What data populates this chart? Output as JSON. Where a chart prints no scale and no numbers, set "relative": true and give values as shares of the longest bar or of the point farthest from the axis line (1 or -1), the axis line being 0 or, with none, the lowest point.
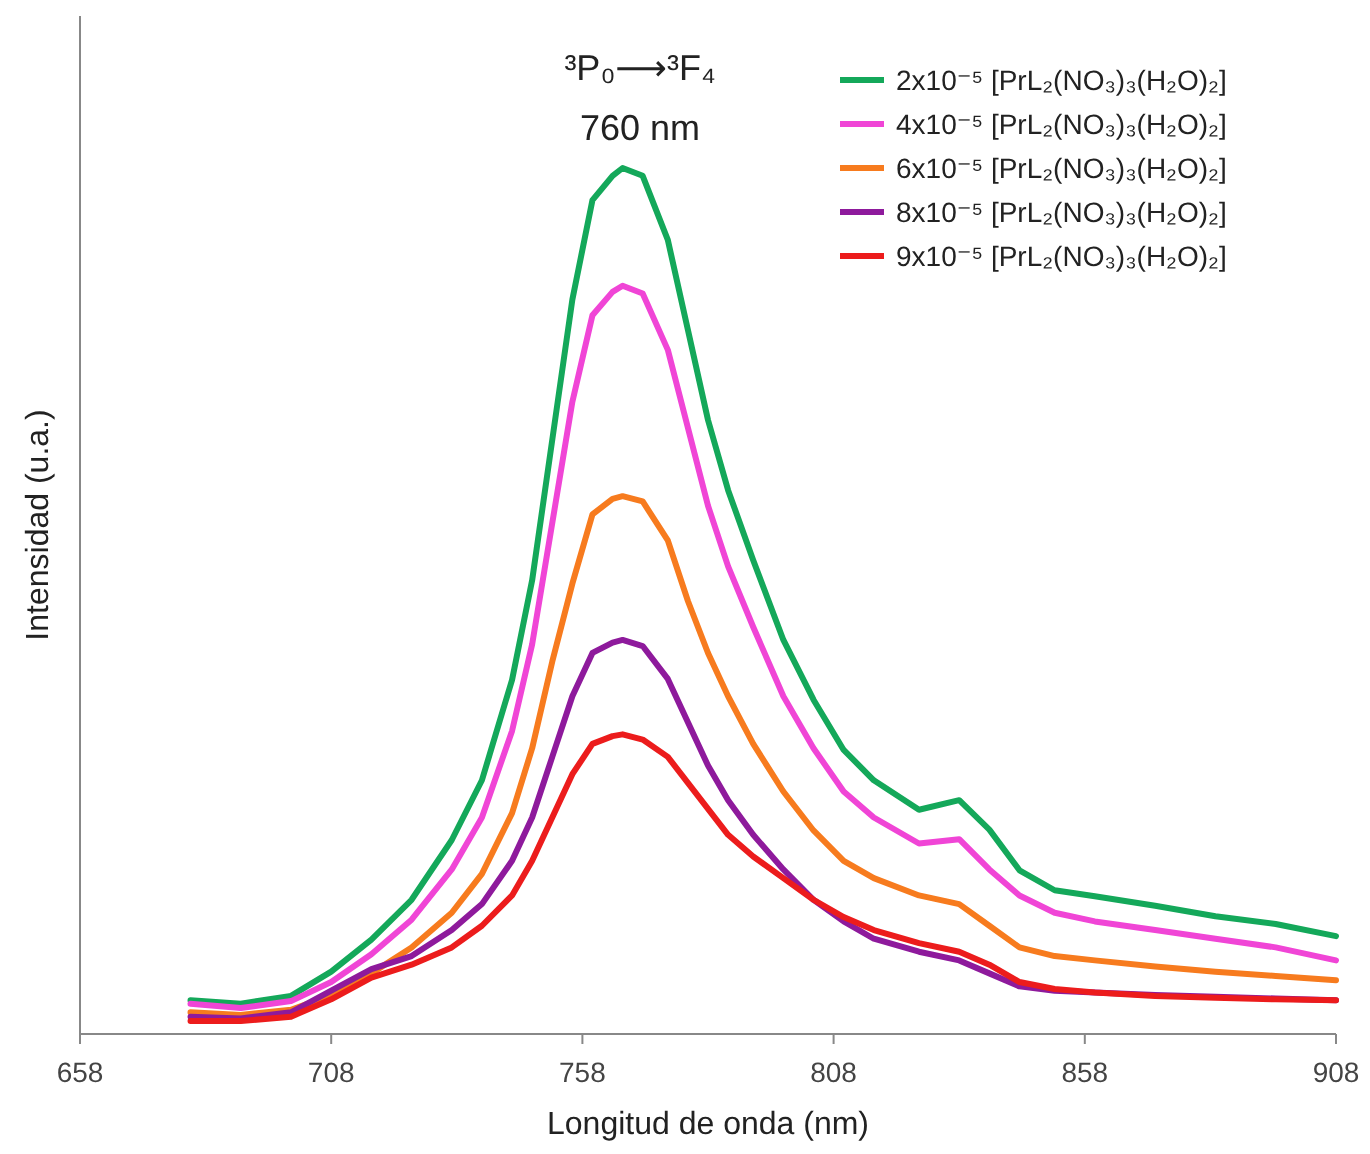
{
  "chart_data": {
    "type": "line",
    "relative": true,
    "xlabel": "Longitud de onda (nm)",
    "ylabel": "Intensidad  (u.a.)",
    "xlim": [
      658,
      908
    ],
    "xticks": [
      658,
      708,
      758,
      808,
      858,
      908
    ],
    "legend": "top right",
    "annotations": [
      "³P₀⟶³F₄",
      "760 nm"
    ],
    "x": [
      680,
      690,
      700,
      708,
      716,
      724,
      732,
      738,
      744,
      748,
      752,
      756,
      760,
      764,
      766,
      770,
      775,
      779,
      783,
      787,
      792,
      798,
      804,
      810,
      816,
      825,
      833,
      839,
      845,
      852,
      860,
      872,
      884,
      896,
      908
    ],
    "series": [
      {
        "name": "2x10⁻⁵ [PrL₂(NO₃)₃(H₂O)₂]",
        "color": "#14a85a",
        "values": [
          0.039,
          0.035,
          0.044,
          0.072,
          0.109,
          0.155,
          0.224,
          0.293,
          0.409,
          0.524,
          0.686,
          0.848,
          0.963,
          0.991,
          1.0,
          0.991,
          0.917,
          0.813,
          0.709,
          0.628,
          0.547,
          0.455,
          0.386,
          0.328,
          0.293,
          0.259,
          0.27,
          0.236,
          0.189,
          0.166,
          0.159,
          0.148,
          0.136,
          0.127,
          0.113
        ]
      },
      {
        "name": "4x10⁻⁵ [PrL₂(NO₃)₃(H₂O)₂]",
        "color": "#f045d6",
        "values": [
          0.035,
          0.03,
          0.038,
          0.06,
          0.092,
          0.132,
          0.19,
          0.25,
          0.35,
          0.45,
          0.59,
          0.73,
          0.83,
          0.857,
          0.864,
          0.855,
          0.79,
          0.7,
          0.61,
          0.54,
          0.47,
          0.39,
          0.33,
          0.28,
          0.25,
          0.22,
          0.225,
          0.19,
          0.16,
          0.14,
          0.13,
          0.12,
          0.11,
          0.1,
          0.085
        ]
      },
      {
        "name": "6x10⁻⁵ [PrL₂(NO₃)₃(H₂O)₂]",
        "color": "#f77b1e",
        "values": [
          0.025,
          0.022,
          0.028,
          0.045,
          0.07,
          0.1,
          0.14,
          0.185,
          0.255,
          0.33,
          0.43,
          0.52,
          0.6,
          0.618,
          0.621,
          0.615,
          0.57,
          0.5,
          0.44,
          0.39,
          0.335,
          0.28,
          0.235,
          0.2,
          0.18,
          0.16,
          0.15,
          0.125,
          0.1,
          0.09,
          0.085,
          0.078,
          0.072,
          0.067,
          0.062
        ]
      },
      {
        "name": "8x10⁻⁵ [PrL₂(NO₃)₃(H₂O)₂]",
        "color": "#8e1a9c",
        "values": [
          0.02,
          0.018,
          0.025,
          0.05,
          0.075,
          0.09,
          0.12,
          0.15,
          0.2,
          0.25,
          0.32,
          0.39,
          0.44,
          0.452,
          0.455,
          0.448,
          0.41,
          0.36,
          0.31,
          0.27,
          0.23,
          0.19,
          0.155,
          0.13,
          0.11,
          0.095,
          0.085,
          0.07,
          0.055,
          0.05,
          0.048,
          0.045,
          0.043,
          0.041,
          0.039
        ]
      },
      {
        "name": "9x10⁻⁵ [PrL₂(NO₃)₃(H₂O)₂]",
        "color": "#ec1c1c",
        "values": [
          0.015,
          0.015,
          0.02,
          0.04,
          0.065,
          0.08,
          0.1,
          0.125,
          0.16,
          0.2,
          0.25,
          0.3,
          0.335,
          0.344,
          0.346,
          0.34,
          0.32,
          0.29,
          0.26,
          0.23,
          0.205,
          0.18,
          0.155,
          0.135,
          0.12,
          0.105,
          0.095,
          0.08,
          0.06,
          0.052,
          0.048,
          0.044,
          0.042,
          0.04,
          0.039
        ]
      }
    ]
  }
}
